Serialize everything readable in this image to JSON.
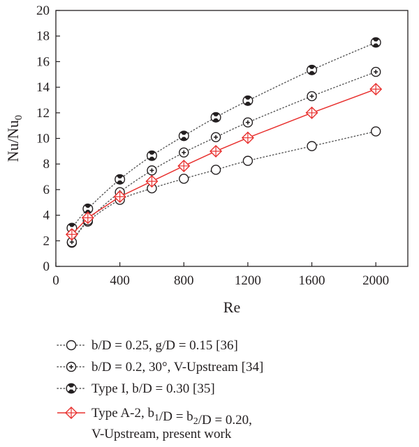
{
  "chart_data": {
    "type": "line",
    "xlabel": "Re",
    "ylabel_main": "Nu/Nu",
    "ylabel_sub": "0",
    "xlim": [
      0,
      2200
    ],
    "ylim": [
      0,
      20
    ],
    "xticks": [
      0,
      400,
      800,
      1200,
      1600,
      2000
    ],
    "yticks": [
      0,
      2,
      4,
      6,
      8,
      10,
      12,
      14,
      16,
      18,
      20
    ],
    "grid": false,
    "legend_placement": "bottom",
    "series": [
      {
        "marker": "open-circle",
        "line": "dotted",
        "color": "#555555",
        "x": [
          100,
          200,
          400,
          600,
          800,
          1000,
          1200,
          1600,
          2000
        ],
        "y": [
          1.85,
          3.5,
          5.2,
          6.1,
          6.85,
          7.55,
          8.25,
          9.4,
          10.55
        ],
        "legend": [
          {
            "text": "b/D = 0.25, g/D = 0.15 [36]",
            "sub": ""
          }
        ]
      },
      {
        "marker": "circle-plus",
        "line": "dotted",
        "color": "#555555",
        "x": [
          100,
          200,
          400,
          600,
          800,
          1000,
          1200,
          1600,
          2000
        ],
        "y": [
          1.9,
          3.6,
          5.8,
          7.5,
          8.9,
          10.1,
          11.25,
          13.3,
          15.2
        ],
        "legend": [
          {
            "text": "b/D = 0.2, 30°, V-Upstream [34]",
            "sub": ""
          }
        ]
      },
      {
        "marker": "bowtie-circle",
        "line": "dotted",
        "color": "#555555",
        "x": [
          100,
          200,
          400,
          600,
          800,
          1000,
          1200,
          1600,
          2000
        ],
        "y": [
          3.0,
          4.5,
          6.8,
          8.65,
          10.2,
          11.65,
          12.95,
          15.35,
          17.5
        ],
        "legend": [
          {
            "text": "Type I, b/D = 0.30 [35]",
            "sub": ""
          }
        ]
      },
      {
        "marker": "diamond-cross",
        "line": "solid",
        "color": "#e8312f",
        "x": [
          100,
          200,
          400,
          600,
          800,
          1000,
          1200,
          1600,
          2000
        ],
        "y": [
          2.5,
          3.8,
          5.45,
          6.65,
          7.85,
          9.0,
          10.05,
          12.0,
          13.85
        ],
        "legend": [
          {
            "text": "Type A-2, b",
            "sub": "1"
          },
          {
            "text": "/D = b",
            "sub": "2"
          },
          {
            "text": "/D = 0.20,",
            "sub": ""
          }
        ],
        "legend_line2": "V-Upstream, present work"
      }
    ]
  }
}
